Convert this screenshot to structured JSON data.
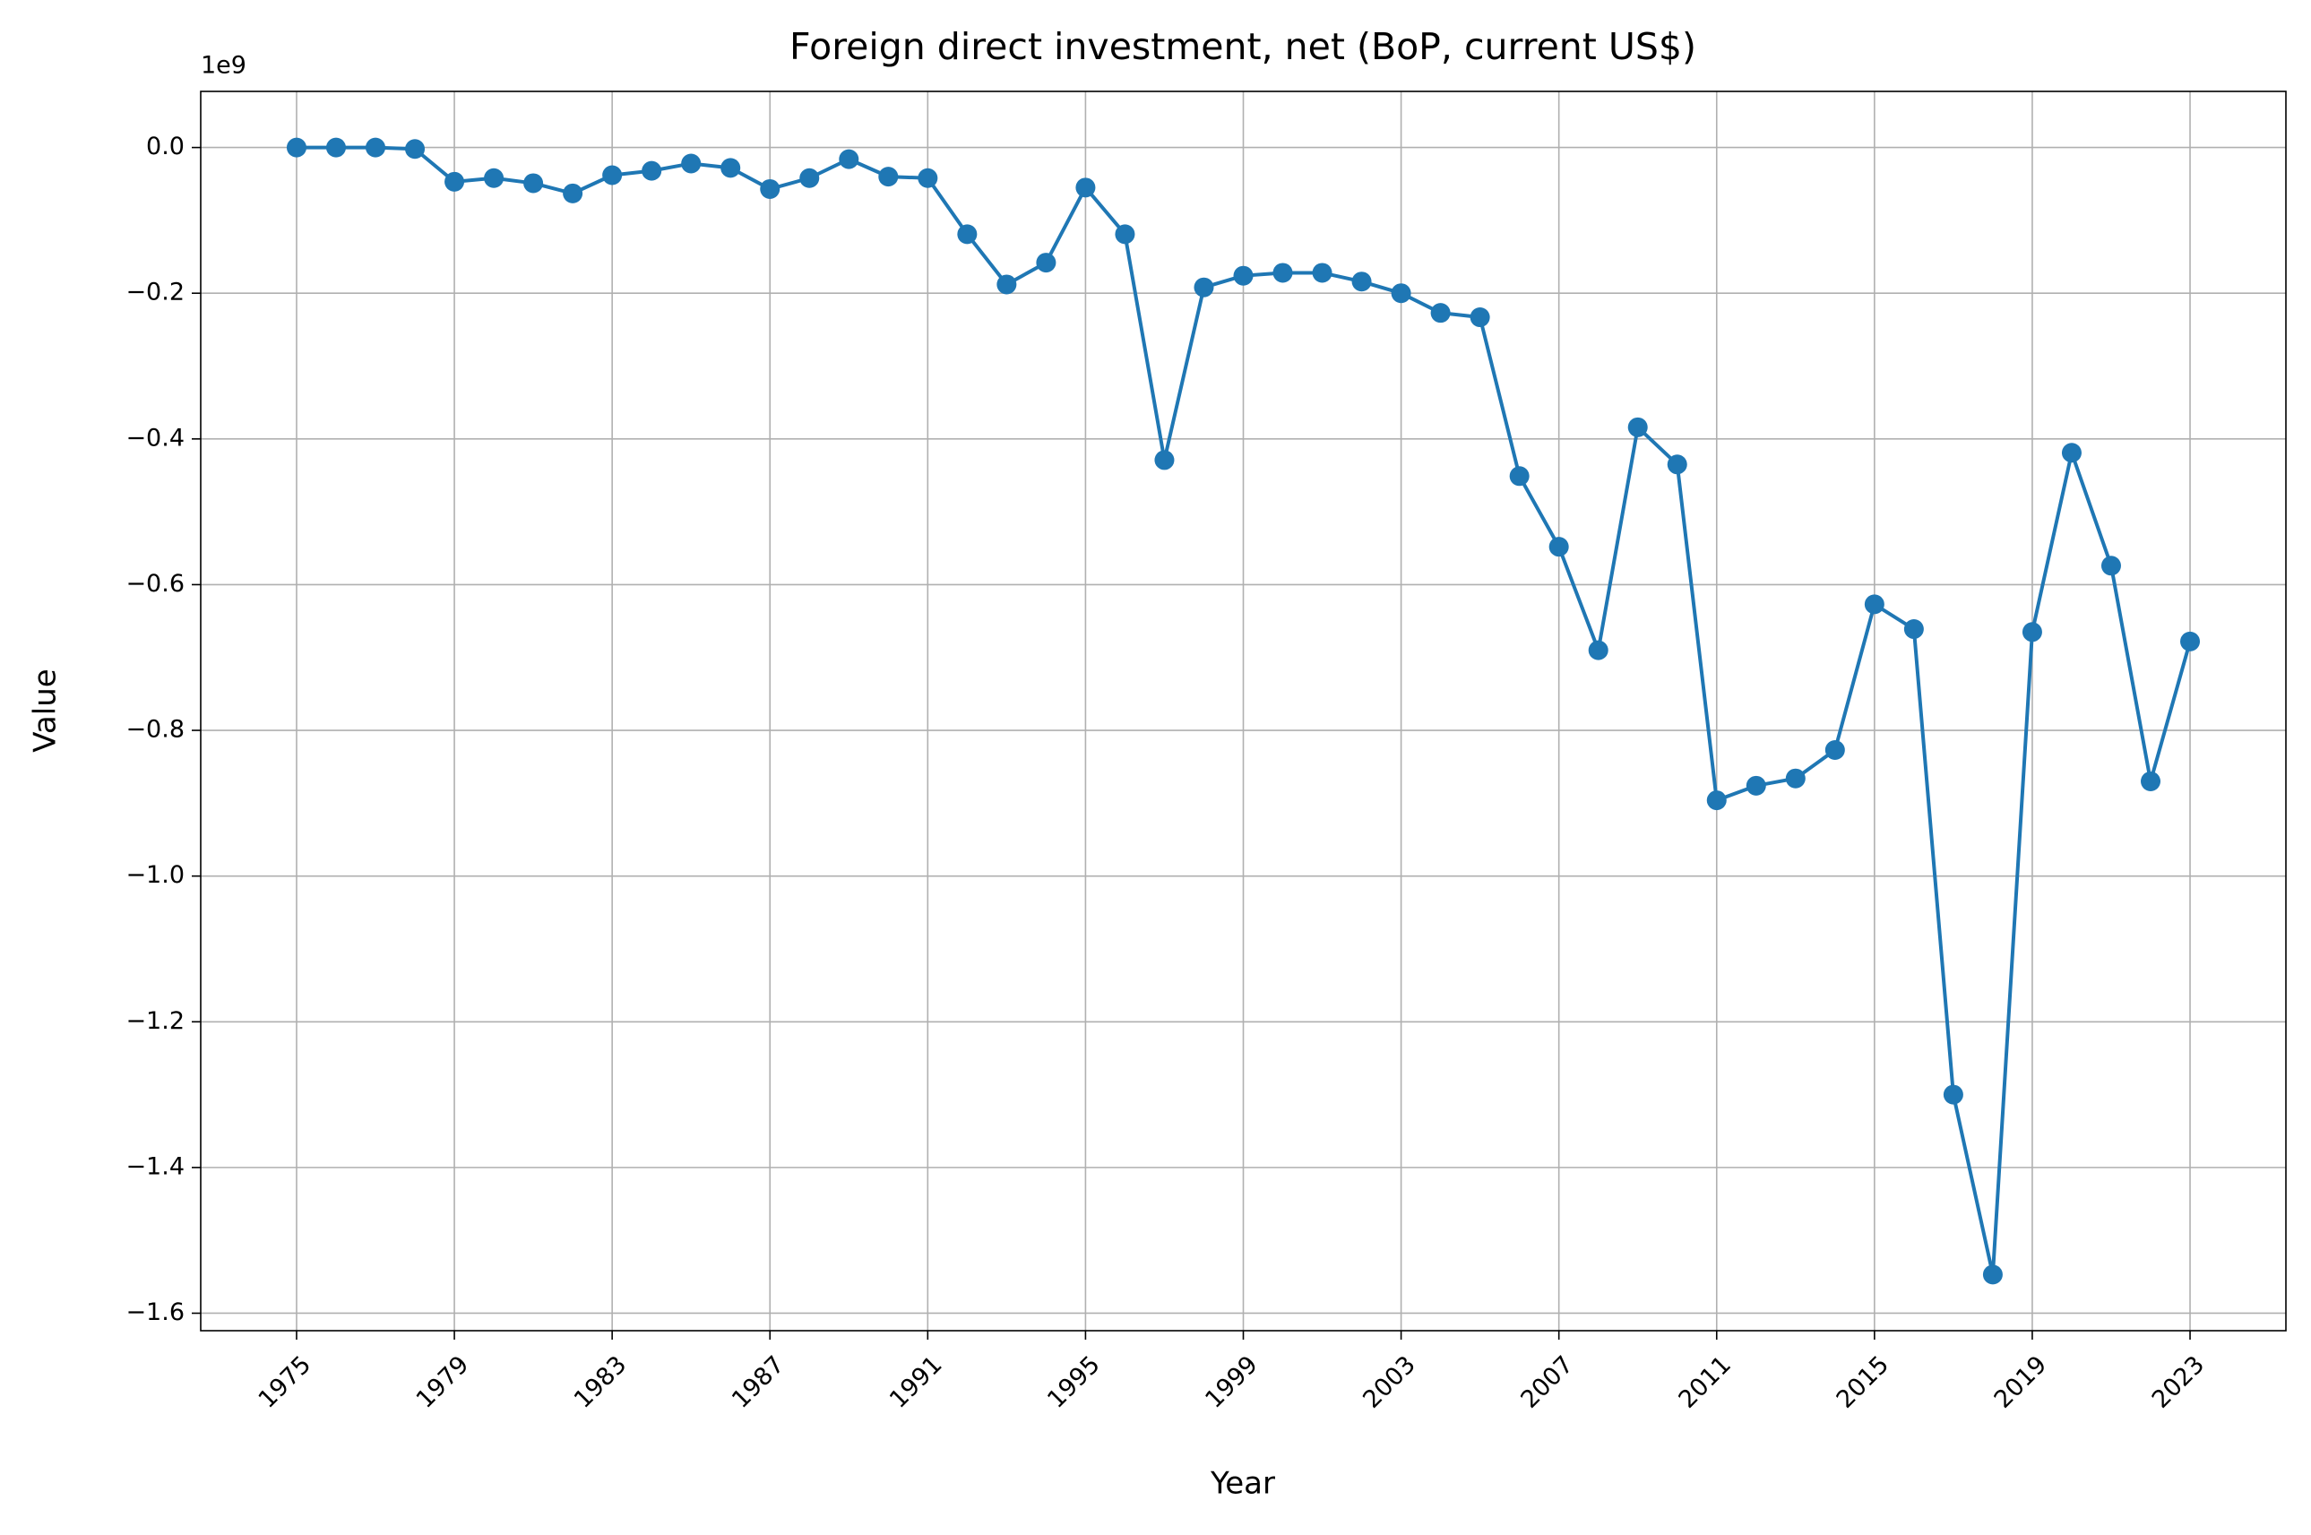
{
  "chart_data": {
    "type": "line",
    "title": "Foreign direct investment, net (BoP, current US$)",
    "x_label": "Year",
    "y_label": "Value",
    "y_offset_label": "1e9",
    "x": [
      1975,
      1976,
      1977,
      1978,
      1979,
      1980,
      1981,
      1982,
      1983,
      1984,
      1985,
      1986,
      1987,
      1988,
      1989,
      1990,
      1991,
      1992,
      1993,
      1994,
      1995,
      1996,
      1997,
      1998,
      1999,
      2000,
      2001,
      2002,
      2003,
      2004,
      2005,
      2006,
      2007,
      2008,
      2009,
      2010,
      2011,
      2012,
      2013,
      2014,
      2015,
      2016,
      2017,
      2018,
      2019,
      2020,
      2021,
      2022,
      2023
    ],
    "series": [
      {
        "name": "Value",
        "color": "#1f77b4",
        "values": [
          0,
          0,
          0,
          -2000000,
          -47000000,
          -42000000,
          -49000000,
          -63000000,
          -38000000,
          -32000000,
          -22000000,
          -28000000,
          -57000000,
          -42000000,
          -16000000,
          -40000000,
          -42000000,
          -119000000,
          -188000000,
          -158000000,
          -55000000,
          -119000000,
          -429000000,
          -192000000,
          -176000000,
          -172000000,
          -172000000,
          -184000000,
          -200000000,
          -227000000,
          -233000000,
          -451000000,
          -548000000,
          -690000000,
          -384000000,
          -435000000,
          -896000000,
          -876000000,
          -866000000,
          -827000000,
          -627000000,
          -661000000,
          -1300000000,
          -1547000000,
          -665000000,
          -419000000,
          -574000000,
          -870000000,
          -678000000
        ]
      }
    ],
    "xlim": [
      1972.57,
      2025.43
    ],
    "ylim": [
      -1624000000,
      77000000
    ],
    "xticks": [
      1975,
      1979,
      1983,
      1987,
      1991,
      1995,
      1999,
      2003,
      2007,
      2011,
      2015,
      2019,
      2023
    ],
    "yticks": [
      {
        "value": 0,
        "label": "0.0"
      },
      {
        "value": -200000000,
        "label": "−0.2"
      },
      {
        "value": -400000000,
        "label": "−0.4"
      },
      {
        "value": -600000000,
        "label": "−0.6"
      },
      {
        "value": -800000000,
        "label": "−0.8"
      },
      {
        "value": -1000000000,
        "label": "−1.0"
      },
      {
        "value": -1200000000,
        "label": "−1.2"
      },
      {
        "value": -1400000000,
        "label": "−1.4"
      },
      {
        "value": -1600000000,
        "label": "−1.6"
      }
    ],
    "grid": true
  }
}
